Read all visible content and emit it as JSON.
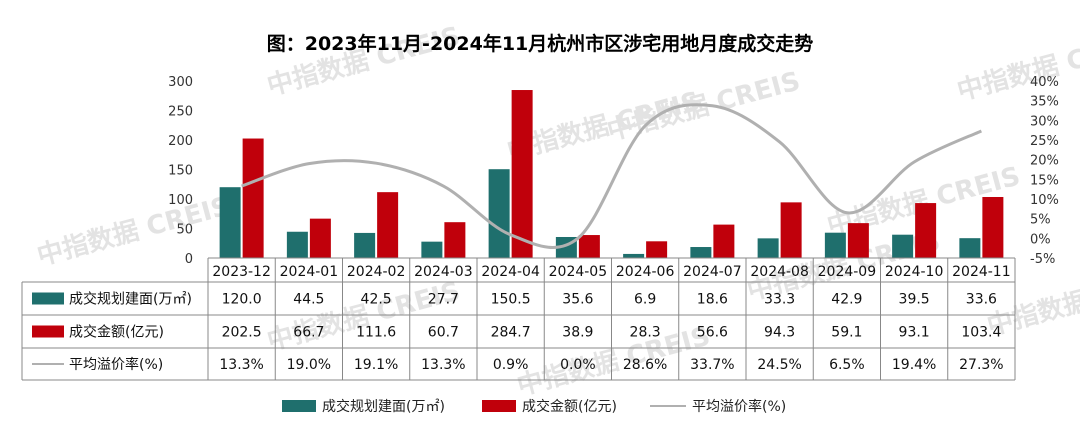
{
  "colors": {
    "area": "#1f6f6d",
    "amount": "#c0000b",
    "premium": "#b0b0b0"
  },
  "watermark": "中指数据 CREIS",
  "chart_data": {
    "type": "bar",
    "title": "图：2023年11月-2024年11月杭州市区涉宅用地月度成交走势",
    "categories": [
      "2023-12",
      "2024-01",
      "2024-02",
      "2024-03",
      "2024-04",
      "2024-05",
      "2024-06",
      "2024-07",
      "2024-08",
      "2024-09",
      "2024-10",
      "2024-11"
    ],
    "series": [
      {
        "name": "成交规划建面(万㎡)",
        "type": "bar",
        "axis": "left",
        "values": [
          120.0,
          44.5,
          42.5,
          27.7,
          150.5,
          35.6,
          6.9,
          18.6,
          33.3,
          42.9,
          39.5,
          33.6
        ],
        "labels": [
          "120.0",
          "44.5",
          "42.5",
          "27.7",
          "150.5",
          "35.6",
          "6.9",
          "18.6",
          "33.3",
          "42.9",
          "39.5",
          "33.6"
        ]
      },
      {
        "name": "成交金额(亿元)",
        "type": "bar",
        "axis": "left",
        "values": [
          202.5,
          66.7,
          111.6,
          60.7,
          284.7,
          38.9,
          28.3,
          56.6,
          94.3,
          59.1,
          93.1,
          103.4
        ],
        "labels": [
          "202.5",
          "66.7",
          "111.6",
          "60.7",
          "284.7",
          "38.9",
          "28.3",
          "56.6",
          "94.3",
          "59.1",
          "93.1",
          "103.4"
        ]
      },
      {
        "name": "平均溢价率(%)",
        "type": "line",
        "axis": "right",
        "values": [
          13.3,
          19.0,
          19.1,
          13.3,
          0.9,
          0.0,
          28.6,
          33.7,
          24.5,
          6.5,
          19.4,
          27.3
        ],
        "labels": [
          "13.3%",
          "19.0%",
          "19.1%",
          "13.3%",
          "0.9%",
          "0.0%",
          "28.6%",
          "33.7%",
          "24.5%",
          "6.5%",
          "19.4%",
          "27.3%"
        ]
      }
    ],
    "left_axis": {
      "ylim": [
        0,
        300
      ],
      "ticks": [
        "0",
        "50",
        "100",
        "150",
        "200",
        "250",
        "300"
      ]
    },
    "right_axis": {
      "ylim": [
        -5,
        40
      ],
      "ticks": [
        "-5%",
        "0%",
        "5%",
        "10%",
        "15%",
        "20%",
        "25%",
        "30%",
        "35%",
        "40%"
      ]
    },
    "legend": {
      "position": "bottom"
    },
    "grid": false
  }
}
